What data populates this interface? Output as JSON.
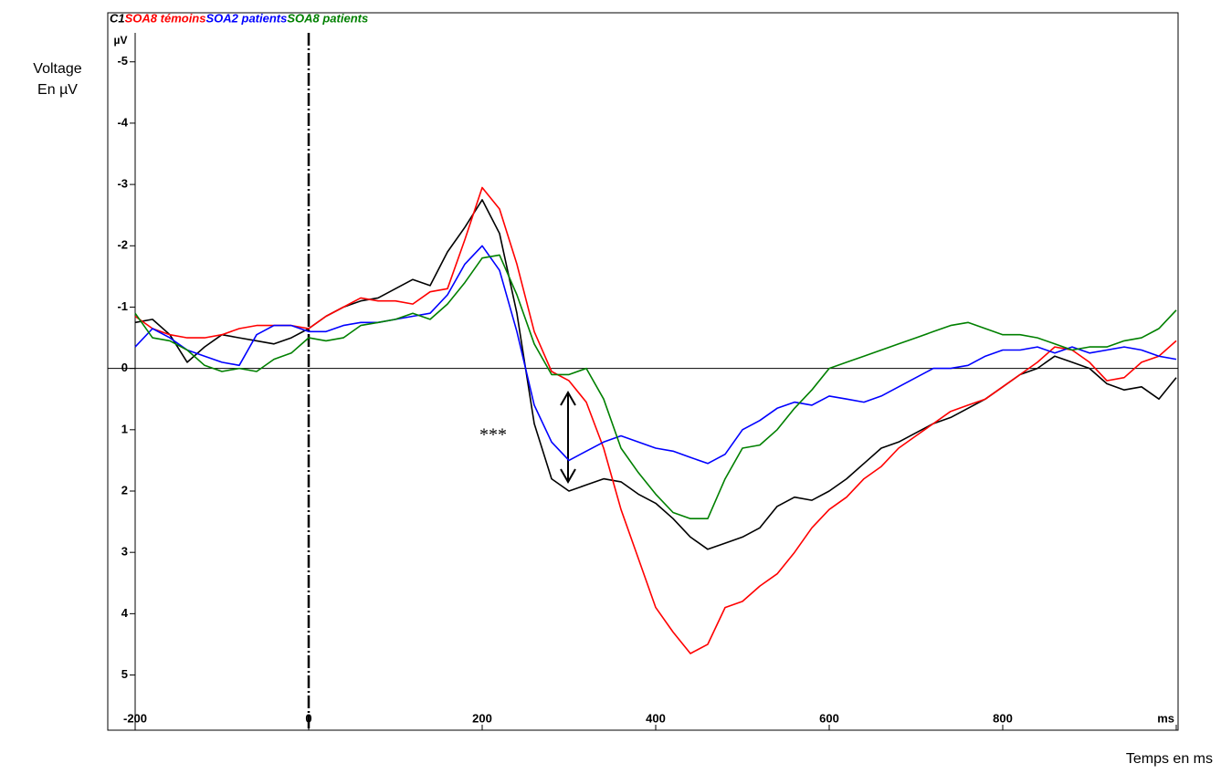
{
  "chart_data": {
    "type": "line",
    "y_label": [
      "Voltage",
      "En µV"
    ],
    "y_unit": "µV",
    "x_label": "Temps en ms",
    "annotation": "***",
    "y_inverted": true,
    "x": [
      -200,
      -180,
      -160,
      -140,
      -120,
      -100,
      -80,
      -60,
      -40,
      -20,
      0,
      20,
      40,
      60,
      80,
      100,
      120,
      140,
      160,
      180,
      200,
      220,
      240,
      260,
      280,
      300,
      320,
      340,
      360,
      380,
      400,
      420,
      440,
      460,
      480,
      500,
      520,
      540,
      560,
      580,
      600,
      620,
      640,
      660,
      680,
      700,
      720,
      740,
      760,
      780,
      800,
      820,
      840,
      860,
      880,
      900,
      920,
      940,
      960,
      980,
      1000
    ],
    "series": [
      {
        "name": "C1",
        "color": "#000000",
        "values": [
          -0.75,
          -0.8,
          -0.55,
          -0.1,
          -0.35,
          -0.55,
          -0.5,
          -0.45,
          -0.4,
          -0.5,
          -0.65,
          -0.85,
          -1.0,
          -1.1,
          -1.15,
          -1.3,
          -1.45,
          -1.35,
          -1.9,
          -2.3,
          -2.75,
          -2.2,
          -0.9,
          0.9,
          1.8,
          2.0,
          1.9,
          1.8,
          1.85,
          2.05,
          2.2,
          2.45,
          2.75,
          2.95,
          2.85,
          2.75,
          2.6,
          2.25,
          2.1,
          2.15,
          2.0,
          1.8,
          1.55,
          1.3,
          1.2,
          1.05,
          0.9,
          0.8,
          0.65,
          0.5,
          0.3,
          0.1,
          0.0,
          -0.2,
          -0.1,
          0.0,
          0.25,
          0.35,
          0.3,
          0.5,
          0.15
        ]
      },
      {
        "name": "SOA8 témoins",
        "color": "#ff0000",
        "values": [
          -0.85,
          -0.65,
          -0.55,
          -0.5,
          -0.5,
          -0.55,
          -0.65,
          -0.7,
          -0.7,
          -0.7,
          -0.65,
          -0.85,
          -1.0,
          -1.15,
          -1.1,
          -1.1,
          -1.05,
          -1.25,
          -1.3,
          -2.1,
          -2.95,
          -2.6,
          -1.7,
          -0.6,
          0.05,
          0.2,
          0.55,
          1.3,
          2.3,
          3.1,
          3.9,
          4.3,
          4.65,
          4.5,
          3.9,
          3.8,
          3.55,
          3.35,
          3.0,
          2.6,
          2.3,
          2.1,
          1.8,
          1.6,
          1.3,
          1.1,
          0.9,
          0.7,
          0.6,
          0.5,
          0.3,
          0.1,
          -0.1,
          -0.35,
          -0.3,
          -0.1,
          0.2,
          0.15,
          -0.1,
          -0.2,
          -0.45
        ]
      },
      {
        "name": "SOA2 patients",
        "color": "#0000ff",
        "values": [
          -0.35,
          -0.65,
          -0.5,
          -0.3,
          -0.2,
          -0.1,
          -0.05,
          -0.55,
          -0.7,
          -0.7,
          -0.6,
          -0.6,
          -0.7,
          -0.75,
          -0.75,
          -0.8,
          -0.85,
          -0.9,
          -1.2,
          -1.7,
          -2.0,
          -1.6,
          -0.6,
          0.6,
          1.2,
          1.5,
          1.35,
          1.2,
          1.1,
          1.2,
          1.3,
          1.35,
          1.45,
          1.55,
          1.4,
          1.0,
          0.85,
          0.65,
          0.55,
          0.6,
          0.45,
          0.5,
          0.55,
          0.45,
          0.3,
          0.15,
          0.0,
          0.0,
          -0.05,
          -0.2,
          -0.3,
          -0.3,
          -0.35,
          -0.25,
          -0.35,
          -0.25,
          -0.3,
          -0.35,
          -0.3,
          -0.2,
          -0.15
        ]
      },
      {
        "name": "SOA8 patients",
        "color": "#008000",
        "values": [
          -0.9,
          -0.5,
          -0.45,
          -0.3,
          -0.05,
          0.05,
          0.0,
          0.05,
          -0.15,
          -0.25,
          -0.5,
          -0.45,
          -0.5,
          -0.7,
          -0.75,
          -0.8,
          -0.9,
          -0.8,
          -1.05,
          -1.4,
          -1.8,
          -1.85,
          -1.2,
          -0.4,
          0.1,
          0.1,
          0.0,
          0.5,
          1.3,
          1.7,
          2.05,
          2.35,
          2.45,
          2.45,
          1.8,
          1.3,
          1.25,
          1.0,
          0.65,
          0.35,
          0.0,
          -0.1,
          -0.2,
          -0.3,
          -0.4,
          -0.5,
          -0.6,
          -0.7,
          -0.75,
          -0.65,
          -0.55,
          -0.55,
          -0.5,
          -0.4,
          -0.3,
          -0.35,
          -0.35,
          -0.45,
          -0.5,
          -0.65,
          -0.95
        ]
      }
    ],
    "xlim": [
      -200,
      1000
    ],
    "xticks": [
      -200,
      0,
      200,
      400,
      600,
      800,
      {
        "value": 1000,
        "label": "ms"
      }
    ],
    "ylim": [
      -5.8,
      5.9
    ],
    "yticks": [
      -5,
      -4,
      -3,
      -2,
      -1,
      0,
      1,
      2,
      3,
      4,
      5
    ]
  }
}
